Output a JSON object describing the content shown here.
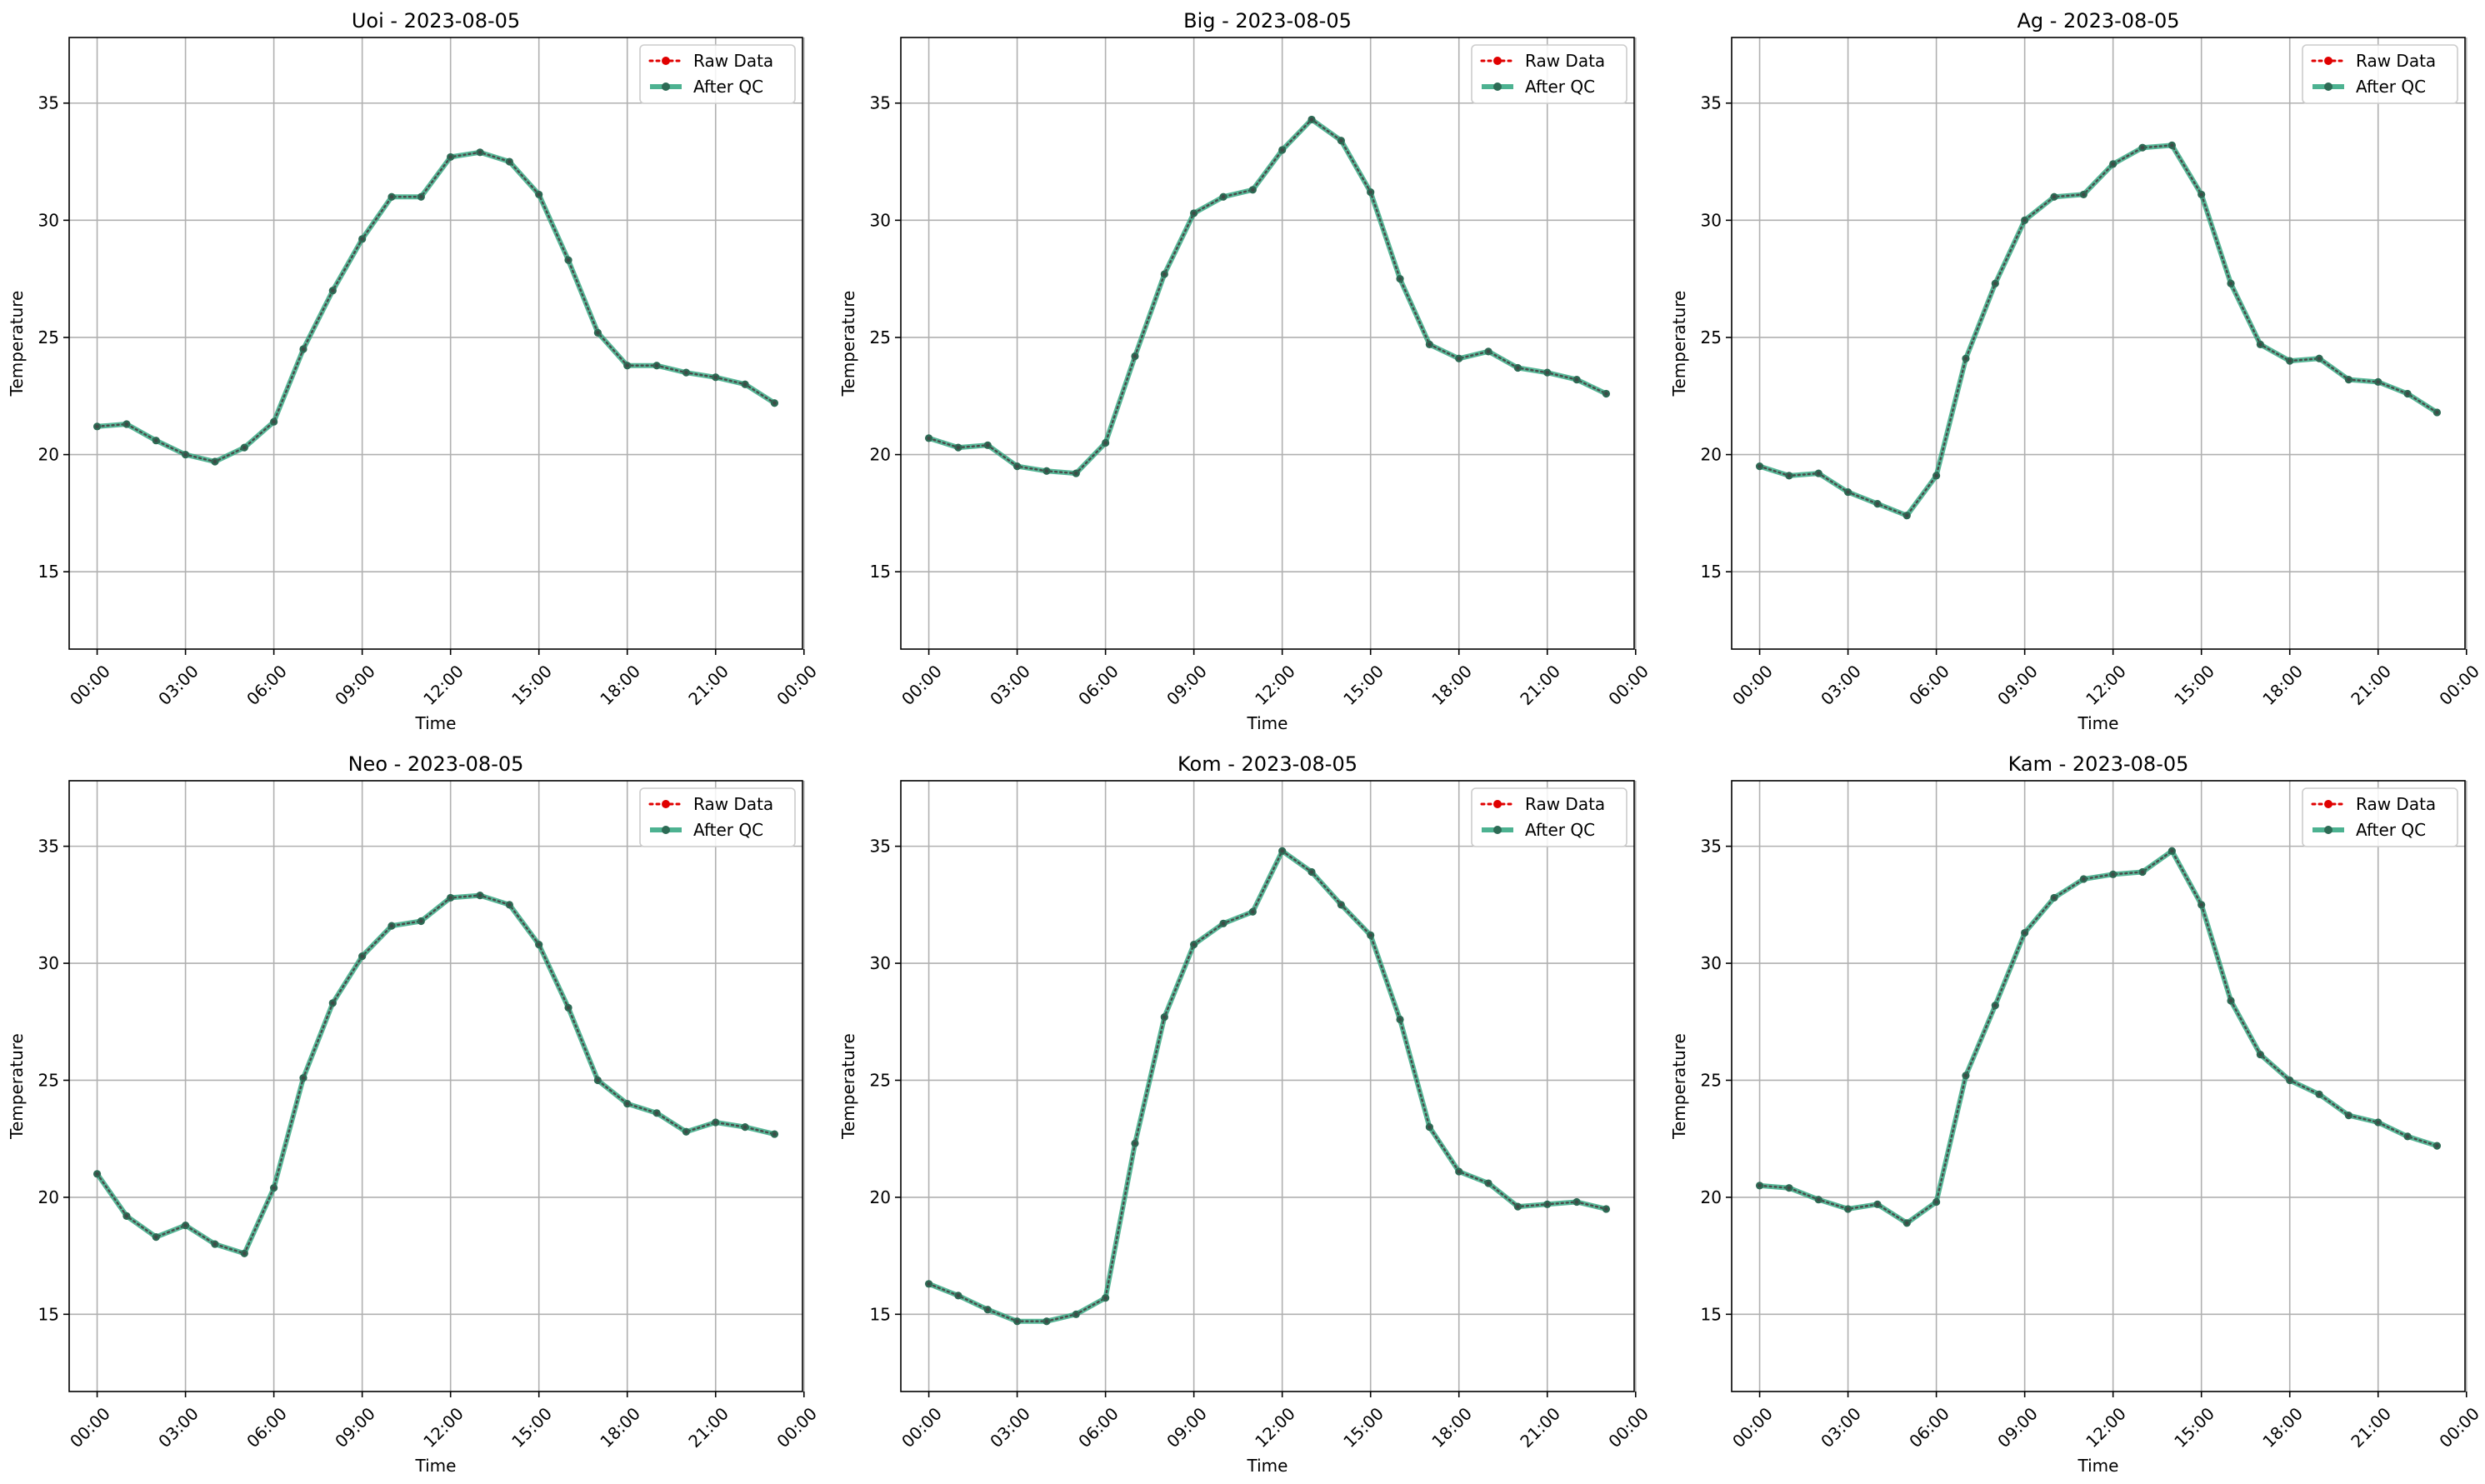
{
  "figure": {
    "legend_placement": "upper right",
    "grid": true
  },
  "chart_data": [
    {
      "type": "line",
      "title": "Uoi - 2023-08-05",
      "xlabel": "Time",
      "ylabel": "Temperature",
      "ylim": [
        11.7,
        37.8
      ],
      "xlim": [
        -0.95,
        23.95
      ],
      "x_ticks": [
        0,
        3,
        6,
        9,
        12,
        15,
        18,
        21,
        24
      ],
      "x_tick_labels": [
        "00:00",
        "03:00",
        "06:00",
        "09:00",
        "12:00",
        "15:00",
        "18:00",
        "21:00",
        "00:00"
      ],
      "y_ticks": [
        15,
        20,
        25,
        30,
        35
      ],
      "y_tick_labels": [
        "15",
        "20",
        "25",
        "30",
        "35"
      ],
      "x_hours": [
        0,
        1,
        2,
        3,
        4,
        5,
        6,
        7,
        8,
        9,
        10,
        11,
        12,
        13,
        14,
        15,
        16,
        17,
        18,
        19,
        20,
        21,
        22,
        23
      ],
      "series": [
        {
          "name": "Raw Data",
          "style": "dotted",
          "color": "#e00000",
          "values": [
            21.2,
            21.3,
            20.6,
            20.0,
            19.7,
            20.3,
            21.4,
            24.5,
            27.0,
            29.2,
            31.0,
            31.0,
            32.7,
            32.9,
            32.5,
            31.1,
            28.3,
            25.2,
            23.8,
            23.8,
            23.5,
            23.3,
            23.0,
            22.2
          ]
        },
        {
          "name": "After QC",
          "style": "solid",
          "color": "#3aaa85",
          "values": [
            21.2,
            21.3,
            20.6,
            20.0,
            19.7,
            20.3,
            21.4,
            24.5,
            27.0,
            29.2,
            31.0,
            31.0,
            32.7,
            32.9,
            32.5,
            31.1,
            28.3,
            25.2,
            23.8,
            23.8,
            23.5,
            23.3,
            23.0,
            22.2
          ]
        }
      ]
    },
    {
      "type": "line",
      "title": "Big - 2023-08-05",
      "xlabel": "Time",
      "ylabel": "Temperature",
      "ylim": [
        11.7,
        37.8
      ],
      "xlim": [
        -0.95,
        23.95
      ],
      "x_ticks": [
        0,
        3,
        6,
        9,
        12,
        15,
        18,
        21,
        24
      ],
      "x_tick_labels": [
        "00:00",
        "03:00",
        "06:00",
        "09:00",
        "12:00",
        "15:00",
        "18:00",
        "21:00",
        "00:00"
      ],
      "y_ticks": [
        15,
        20,
        25,
        30,
        35
      ],
      "y_tick_labels": [
        "15",
        "20",
        "25",
        "30",
        "35"
      ],
      "x_hours": [
        0,
        1,
        2,
        3,
        4,
        5,
        6,
        7,
        8,
        9,
        10,
        11,
        12,
        13,
        14,
        15,
        16,
        17,
        18,
        19,
        20,
        21,
        22,
        23
      ],
      "series": [
        {
          "name": "Raw Data",
          "style": "dotted",
          "color": "#e00000",
          "values": [
            20.7,
            20.3,
            20.4,
            19.5,
            19.3,
            19.2,
            20.5,
            24.2,
            27.7,
            30.3,
            31.0,
            31.3,
            33.0,
            34.3,
            33.4,
            31.2,
            27.5,
            24.7,
            24.1,
            24.4,
            23.7,
            23.5,
            23.2,
            22.6
          ]
        },
        {
          "name": "After QC",
          "style": "solid",
          "color": "#3aaa85",
          "values": [
            20.7,
            20.3,
            20.4,
            19.5,
            19.3,
            19.2,
            20.5,
            24.2,
            27.7,
            30.3,
            31.0,
            31.3,
            33.0,
            34.3,
            33.4,
            31.2,
            27.5,
            24.7,
            24.1,
            24.4,
            23.7,
            23.5,
            23.2,
            22.6
          ]
        }
      ]
    },
    {
      "type": "line",
      "title": "Ag - 2023-08-05",
      "xlabel": "Time",
      "ylabel": "Temperature",
      "ylim": [
        11.7,
        37.8
      ],
      "xlim": [
        -0.95,
        23.95
      ],
      "x_ticks": [
        0,
        3,
        6,
        9,
        12,
        15,
        18,
        21,
        24
      ],
      "x_tick_labels": [
        "00:00",
        "03:00",
        "06:00",
        "09:00",
        "12:00",
        "15:00",
        "18:00",
        "21:00",
        "00:00"
      ],
      "y_ticks": [
        15,
        20,
        25,
        30,
        35
      ],
      "y_tick_labels": [
        "15",
        "20",
        "25",
        "30",
        "35"
      ],
      "x_hours": [
        0,
        1,
        2,
        3,
        4,
        5,
        6,
        7,
        8,
        9,
        10,
        11,
        12,
        13,
        14,
        15,
        16,
        17,
        18,
        19,
        20,
        21,
        22,
        23
      ],
      "series": [
        {
          "name": "Raw Data",
          "style": "dotted",
          "color": "#e00000",
          "values": [
            19.5,
            19.1,
            19.2,
            18.4,
            17.9,
            17.4,
            19.1,
            24.1,
            27.3,
            30.0,
            31.0,
            31.1,
            32.4,
            33.1,
            33.2,
            31.1,
            27.3,
            24.7,
            24.0,
            24.1,
            23.2,
            23.1,
            22.6,
            21.8
          ]
        },
        {
          "name": "After QC",
          "style": "solid",
          "color": "#3aaa85",
          "values": [
            19.5,
            19.1,
            19.2,
            18.4,
            17.9,
            17.4,
            19.1,
            24.1,
            27.3,
            30.0,
            31.0,
            31.1,
            32.4,
            33.1,
            33.2,
            31.1,
            27.3,
            24.7,
            24.0,
            24.1,
            23.2,
            23.1,
            22.6,
            21.8
          ]
        }
      ]
    },
    {
      "type": "line",
      "title": "Neo - 2023-08-05",
      "xlabel": "Time",
      "ylabel": "Temperature",
      "ylim": [
        11.7,
        37.8
      ],
      "xlim": [
        -0.95,
        23.95
      ],
      "x_ticks": [
        0,
        3,
        6,
        9,
        12,
        15,
        18,
        21,
        24
      ],
      "x_tick_labels": [
        "00:00",
        "03:00",
        "06:00",
        "09:00",
        "12:00",
        "15:00",
        "18:00",
        "21:00",
        "00:00"
      ],
      "y_ticks": [
        15,
        20,
        25,
        30,
        35
      ],
      "y_tick_labels": [
        "15",
        "20",
        "25",
        "30",
        "35"
      ],
      "x_hours": [
        0,
        1,
        2,
        3,
        4,
        5,
        6,
        7,
        8,
        9,
        10,
        11,
        12,
        13,
        14,
        15,
        16,
        17,
        18,
        19,
        20,
        21,
        22,
        23
      ],
      "series": [
        {
          "name": "Raw Data",
          "style": "dotted",
          "color": "#e00000",
          "values": [
            21.0,
            19.2,
            18.3,
            18.8,
            18.0,
            17.6,
            20.4,
            25.1,
            28.3,
            30.3,
            31.6,
            31.8,
            32.8,
            32.9,
            32.5,
            30.8,
            28.1,
            25.0,
            24.0,
            23.6,
            22.8,
            23.2,
            23.0,
            22.7
          ]
        },
        {
          "name": "After QC",
          "style": "solid",
          "color": "#3aaa85",
          "values": [
            21.0,
            19.2,
            18.3,
            18.8,
            18.0,
            17.6,
            20.4,
            25.1,
            28.3,
            30.3,
            31.6,
            31.8,
            32.8,
            32.9,
            32.5,
            30.8,
            28.1,
            25.0,
            24.0,
            23.6,
            22.8,
            23.2,
            23.0,
            22.7
          ]
        }
      ]
    },
    {
      "type": "line",
      "title": "Kom - 2023-08-05",
      "xlabel": "Time",
      "ylabel": "Temperature",
      "ylim": [
        11.7,
        37.8
      ],
      "xlim": [
        -0.95,
        23.95
      ],
      "x_ticks": [
        0,
        3,
        6,
        9,
        12,
        15,
        18,
        21,
        24
      ],
      "x_tick_labels": [
        "00:00",
        "03:00",
        "06:00",
        "09:00",
        "12:00",
        "15:00",
        "18:00",
        "21:00",
        "00:00"
      ],
      "y_ticks": [
        15,
        20,
        25,
        30,
        35
      ],
      "y_tick_labels": [
        "15",
        "20",
        "25",
        "30",
        "35"
      ],
      "x_hours": [
        0,
        1,
        2,
        3,
        4,
        5,
        6,
        7,
        8,
        9,
        10,
        11,
        12,
        13,
        14,
        15,
        16,
        17,
        18,
        19,
        20,
        21,
        22,
        23
      ],
      "series": [
        {
          "name": "Raw Data",
          "style": "dotted",
          "color": "#e00000",
          "values": [
            16.3,
            15.8,
            15.2,
            14.7,
            14.7,
            15.0,
            15.7,
            22.3,
            27.7,
            30.8,
            31.7,
            32.2,
            34.8,
            33.9,
            32.5,
            31.2,
            27.6,
            23.0,
            21.1,
            20.6,
            19.6,
            19.7,
            19.8,
            19.5
          ]
        },
        {
          "name": "After QC",
          "style": "solid",
          "color": "#3aaa85",
          "values": [
            16.3,
            15.8,
            15.2,
            14.7,
            14.7,
            15.0,
            15.7,
            22.3,
            27.7,
            30.8,
            31.7,
            32.2,
            34.8,
            33.9,
            32.5,
            31.2,
            27.6,
            23.0,
            21.1,
            20.6,
            19.6,
            19.7,
            19.8,
            19.5
          ]
        }
      ]
    },
    {
      "type": "line",
      "title": "Kam - 2023-08-05",
      "xlabel": "Time",
      "ylabel": "Temperature",
      "ylim": [
        11.7,
        37.8
      ],
      "xlim": [
        -0.95,
        23.95
      ],
      "x_ticks": [
        0,
        3,
        6,
        9,
        12,
        15,
        18,
        21,
        24
      ],
      "x_tick_labels": [
        "00:00",
        "03:00",
        "06:00",
        "09:00",
        "12:00",
        "15:00",
        "18:00",
        "21:00",
        "00:00"
      ],
      "y_ticks": [
        15,
        20,
        25,
        30,
        35
      ],
      "y_tick_labels": [
        "15",
        "20",
        "25",
        "30",
        "35"
      ],
      "x_hours": [
        0,
        1,
        2,
        3,
        4,
        5,
        6,
        7,
        8,
        9,
        10,
        11,
        12,
        13,
        14,
        15,
        16,
        17,
        18,
        19,
        20,
        21,
        22,
        23
      ],
      "series": [
        {
          "name": "Raw Data",
          "style": "dotted",
          "color": "#e00000",
          "values": [
            20.5,
            20.4,
            19.9,
            19.5,
            19.7,
            18.9,
            19.8,
            25.2,
            28.2,
            31.3,
            32.8,
            33.6,
            33.8,
            33.9,
            34.8,
            32.5,
            28.4,
            26.1,
            25.0,
            24.4,
            23.5,
            23.2,
            22.6,
            22.2
          ]
        },
        {
          "name": "After QC",
          "style": "solid",
          "color": "#3aaa85",
          "values": [
            20.5,
            20.4,
            19.9,
            19.5,
            19.7,
            18.9,
            19.8,
            25.2,
            28.2,
            31.3,
            32.8,
            33.6,
            33.8,
            33.9,
            34.8,
            32.5,
            28.4,
            26.1,
            25.0,
            24.4,
            23.5,
            23.2,
            22.6,
            22.2
          ]
        }
      ]
    }
  ]
}
